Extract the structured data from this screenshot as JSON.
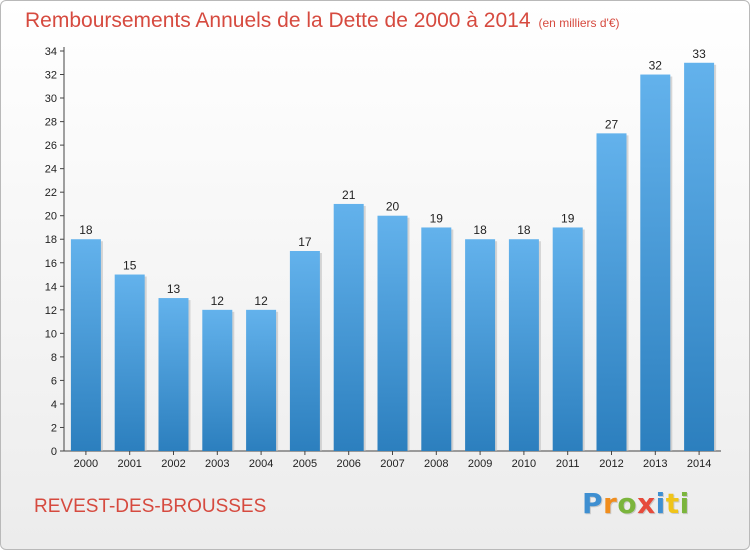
{
  "header": {
    "title": "Remboursements Annuels de la Dette de 2000 à 2014",
    "unit": "(en milliers d'€)"
  },
  "footer": {
    "commune": "REVEST-DES-BROUSSES",
    "logo": "Proxiti",
    "logo_colors": [
      "#3e8fd1",
      "#f08d1d",
      "#7bb53c",
      "#e64b3c",
      "#3e8fd1",
      "#f0c419",
      "#7bb53c"
    ]
  },
  "colors": {
    "title": "#d64a3f",
    "bar_light": "#63b2ec",
    "bar_dark": "#2c7fbe",
    "axis": "#444444"
  },
  "chart_data": {
    "type": "bar",
    "categories": [
      "2000",
      "2001",
      "2002",
      "2003",
      "2004",
      "2005",
      "2006",
      "2007",
      "2008",
      "2009",
      "2010",
      "2011",
      "2012",
      "2013",
      "2014"
    ],
    "values": [
      18,
      15,
      13,
      12,
      12,
      17,
      21,
      20,
      19,
      18,
      18,
      19,
      27,
      32,
      33
    ],
    "ylim": [
      0,
      34
    ],
    "yticks": [
      0,
      2,
      4,
      6,
      8,
      10,
      12,
      14,
      16,
      18,
      20,
      22,
      24,
      26,
      28,
      30,
      32,
      34
    ],
    "grid": false,
    "legend": "none"
  }
}
